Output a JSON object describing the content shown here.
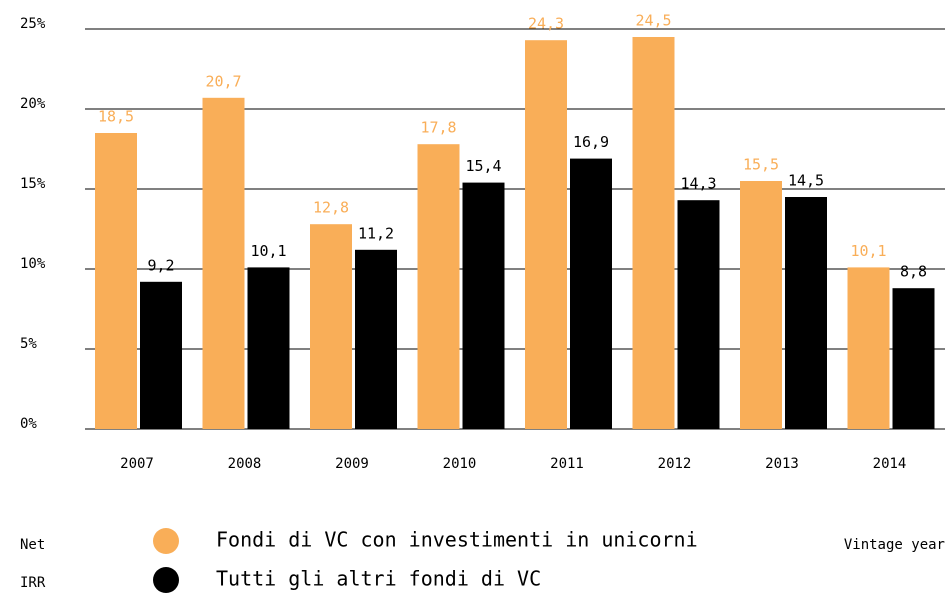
{
  "chart_data": {
    "type": "bar",
    "categories": [
      "2007",
      "2008",
      "2009",
      "2010",
      "2011",
      "2012",
      "2013",
      "2014"
    ],
    "series": [
      {
        "name": "Fondi di VC con investimenti in unicorni",
        "color": "#f9ae58",
        "values": [
          18.5,
          20.7,
          12.8,
          17.8,
          24.3,
          24.5,
          15.5,
          10.1
        ],
        "value_labels": [
          "18,5",
          "20,7",
          "12,8",
          "17,8",
          "24,3",
          "24,5",
          "15,5",
          "10,1"
        ]
      },
      {
        "name": "Tutti gli altri fondi di VC",
        "color": "#000000",
        "values": [
          9.2,
          10.1,
          11.2,
          15.4,
          16.9,
          14.3,
          14.5,
          8.8
        ],
        "value_labels": [
          "9,2",
          "10,1",
          "11,2",
          "15,4",
          "16,9",
          "14,3",
          "14,5",
          "8,8"
        ]
      }
    ],
    "ylim": [
      0,
      25
    ],
    "yticks": [
      {
        "value": 0,
        "label": "0%"
      },
      {
        "value": 5,
        "label": "5%"
      },
      {
        "value": 10,
        "label": "10%"
      },
      {
        "value": 15,
        "label": "15%"
      },
      {
        "value": 20,
        "label": "20%"
      },
      {
        "value": 25,
        "label": "25%"
      }
    ],
    "y_label": [
      "Net",
      "IRR"
    ],
    "x_label": "Vintage year",
    "grid": true
  }
}
